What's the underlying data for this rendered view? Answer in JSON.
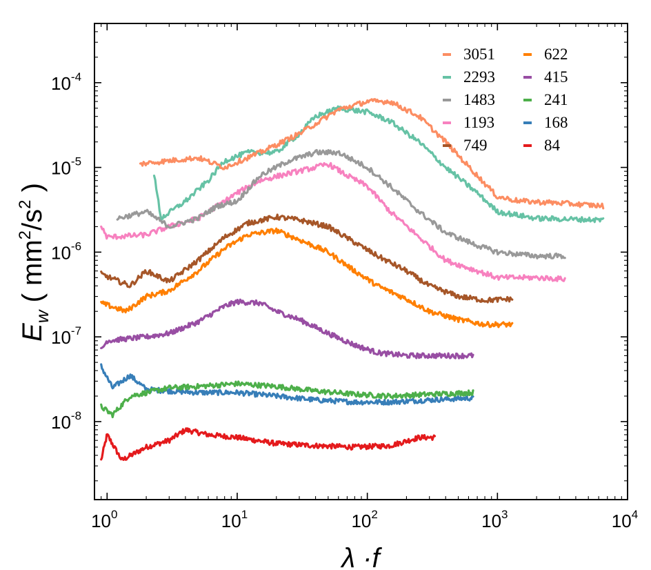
{
  "chart_data": {
    "type": "line",
    "title": "",
    "xlabel": "λ·f",
    "ylabel": "E_w ( mm²/s² )",
    "xscale": "log",
    "yscale": "log",
    "xlim": [
      0.8,
      10000
    ],
    "ylim": [
      1.2e-09,
      0.0005
    ],
    "x_ticks": [
      {
        "base": "10",
        "exp": "0",
        "value": 1
      },
      {
        "base": "10",
        "exp": "1",
        "value": 10
      },
      {
        "base": "10",
        "exp": "2",
        "value": 100
      },
      {
        "base": "10",
        "exp": "3",
        "value": 1000
      },
      {
        "base": "10",
        "exp": "4",
        "value": 10000
      }
    ],
    "y_ticks": [
      {
        "base": "10",
        "exp": "-8",
        "value": 1e-08
      },
      {
        "base": "10",
        "exp": "-7",
        "value": 1e-07
      },
      {
        "base": "10",
        "exp": "-6",
        "value": 1e-06
      },
      {
        "base": "10",
        "exp": "-5",
        "value": 1e-05
      },
      {
        "base": "10",
        "exp": "-4",
        "value": 0.0001
      }
    ],
    "legend_position": "top-right",
    "series": [
      {
        "name": "3051",
        "color": "#fc8d62",
        "x": [
          1.8,
          3,
          5,
          8,
          15,
          30,
          60,
          100,
          150,
          250,
          400,
          700,
          1000,
          1500,
          3000,
          6500
        ],
        "values": [
          1.1e-05,
          1.2e-05,
          1.3e-05,
          1e-05,
          1.5e-05,
          2.5e-05,
          4.8e-05,
          6e-05,
          6e-05,
          4e-05,
          2e-05,
          8e-06,
          4.5e-06,
          4e-06,
          3.8e-06,
          3.5e-06
        ]
      },
      {
        "name": "2293",
        "color": "#66c2a5",
        "x": [
          2.3,
          2.6,
          4,
          6,
          8,
          12,
          20,
          30,
          40,
          60,
          100,
          150,
          250,
          400,
          700,
          1000,
          2000,
          6500
        ],
        "values": [
          8e-06,
          2.5e-06,
          4e-06,
          7e-06,
          1.2e-05,
          1.5e-05,
          1.5e-05,
          2.5e-05,
          4e-05,
          5e-05,
          4.5e-05,
          3.5e-05,
          2e-05,
          1e-05,
          5e-06,
          3e-06,
          2.5e-06,
          2.4e-06
        ]
      },
      {
        "name": "1483",
        "color": "#999999",
        "x": [
          1.2,
          2,
          3,
          5,
          7,
          10,
          15,
          25,
          40,
          60,
          100,
          150,
          250,
          400,
          700,
          1000,
          2000,
          3300
        ],
        "values": [
          2.5e-06,
          3e-06,
          2e-06,
          2.5e-06,
          3.5e-06,
          4e-06,
          8e-06,
          1.2e-05,
          1.5e-05,
          1.5e-05,
          1e-05,
          6e-06,
          3e-06,
          1.7e-06,
          1.2e-06,
          1e-06,
          9e-07,
          9e-07
        ]
      },
      {
        "name": "1193",
        "color": "#f781bf",
        "x": [
          0.9,
          1,
          2,
          3,
          5,
          8,
          10,
          15,
          25,
          40,
          50,
          70,
          100,
          150,
          250,
          400,
          700,
          1000,
          2000,
          3300
        ],
        "values": [
          2e-06,
          1.5e-06,
          1.6e-06,
          2e-06,
          2.5e-06,
          4e-06,
          5e-06,
          7e-06,
          8.5e-06,
          1e-05,
          1.1e-05,
          8e-06,
          6e-06,
          3e-06,
          1.5e-06,
          8e-07,
          6e-07,
          5e-07,
          5e-07,
          4.8e-07
        ]
      },
      {
        "name": "749",
        "color": "#a65628",
        "x": [
          0.9,
          1.5,
          2,
          3,
          5,
          8,
          12,
          20,
          30,
          50,
          80,
          120,
          200,
          300,
          500,
          800,
          1300
        ],
        "values": [
          5.5e-07,
          4e-07,
          6e-07,
          4.5e-07,
          8e-07,
          1.5e-06,
          2.2e-06,
          2.6e-06,
          2.4e-06,
          2e-06,
          1.3e-06,
          9e-07,
          6e-07,
          4e-07,
          3e-07,
          2.7e-07,
          2.8e-07
        ]
      },
      {
        "name": "622",
        "color": "#ff7f00",
        "x": [
          0.9,
          1.4,
          2,
          3,
          5,
          8,
          12,
          20,
          30,
          50,
          80,
          120,
          200,
          300,
          500,
          800,
          1300
        ],
        "values": [
          2.5e-07,
          2e-07,
          3e-07,
          3.5e-07,
          6e-07,
          1.1e-06,
          1.6e-06,
          1.8e-06,
          1.4e-06,
          1e-06,
          6e-07,
          4e-07,
          2.8e-07,
          2e-07,
          1.6e-07,
          1.4e-07,
          1.4e-07
        ]
      },
      {
        "name": "415",
        "color": "#984ea3",
        "x": [
          0.9,
          1,
          2,
          3,
          5,
          8,
          10,
          15,
          20,
          30,
          50,
          80,
          120,
          200,
          400,
          650
        ],
        "values": [
          7e-08,
          9e-08,
          1e-07,
          1.1e-07,
          1.5e-07,
          2.3e-07,
          2.6e-07,
          2.5e-07,
          2e-07,
          1.6e-07,
          1.1e-07,
          8e-08,
          6.5e-08,
          6e-08,
          6e-08,
          6e-08
        ]
      },
      {
        "name": "241",
        "color": "#4daf4a",
        "x": [
          0.9,
          1.1,
          1.5,
          3,
          5,
          10,
          20,
          40,
          80,
          150,
          300,
          650
        ],
        "values": [
          1.5e-08,
          1.2e-08,
          2e-08,
          2.5e-08,
          2.6e-08,
          2.8e-08,
          2.6e-08,
          2.3e-08,
          2.1e-08,
          2e-08,
          2.1e-08,
          2.2e-08
        ]
      },
      {
        "name": "168",
        "color": "#377eb8",
        "x": [
          0.9,
          1.1,
          1.5,
          2,
          3,
          5,
          10,
          20,
          40,
          80,
          150,
          300,
          650
        ],
        "values": [
          4.5e-08,
          2.5e-08,
          3.5e-08,
          2.4e-08,
          2.3e-08,
          2.2e-08,
          2.2e-08,
          2e-08,
          1.8e-08,
          1.7e-08,
          1.7e-08,
          1.8e-08,
          1.9e-08
        ]
      },
      {
        "name": "84",
        "color": "#e41a1c",
        "x": [
          0.9,
          1,
          1.3,
          2,
          3,
          4,
          6,
          10,
          20,
          40,
          80,
          150,
          250,
          330
        ],
        "values": [
          3.5e-09,
          7e-09,
          3.5e-09,
          5e-09,
          6e-09,
          8e-09,
          7e-09,
          6.5e-09,
          5.5e-09,
          5.2e-09,
          5e-09,
          5.2e-09,
          6.5e-09,
          6.5e-09
        ]
      }
    ]
  }
}
